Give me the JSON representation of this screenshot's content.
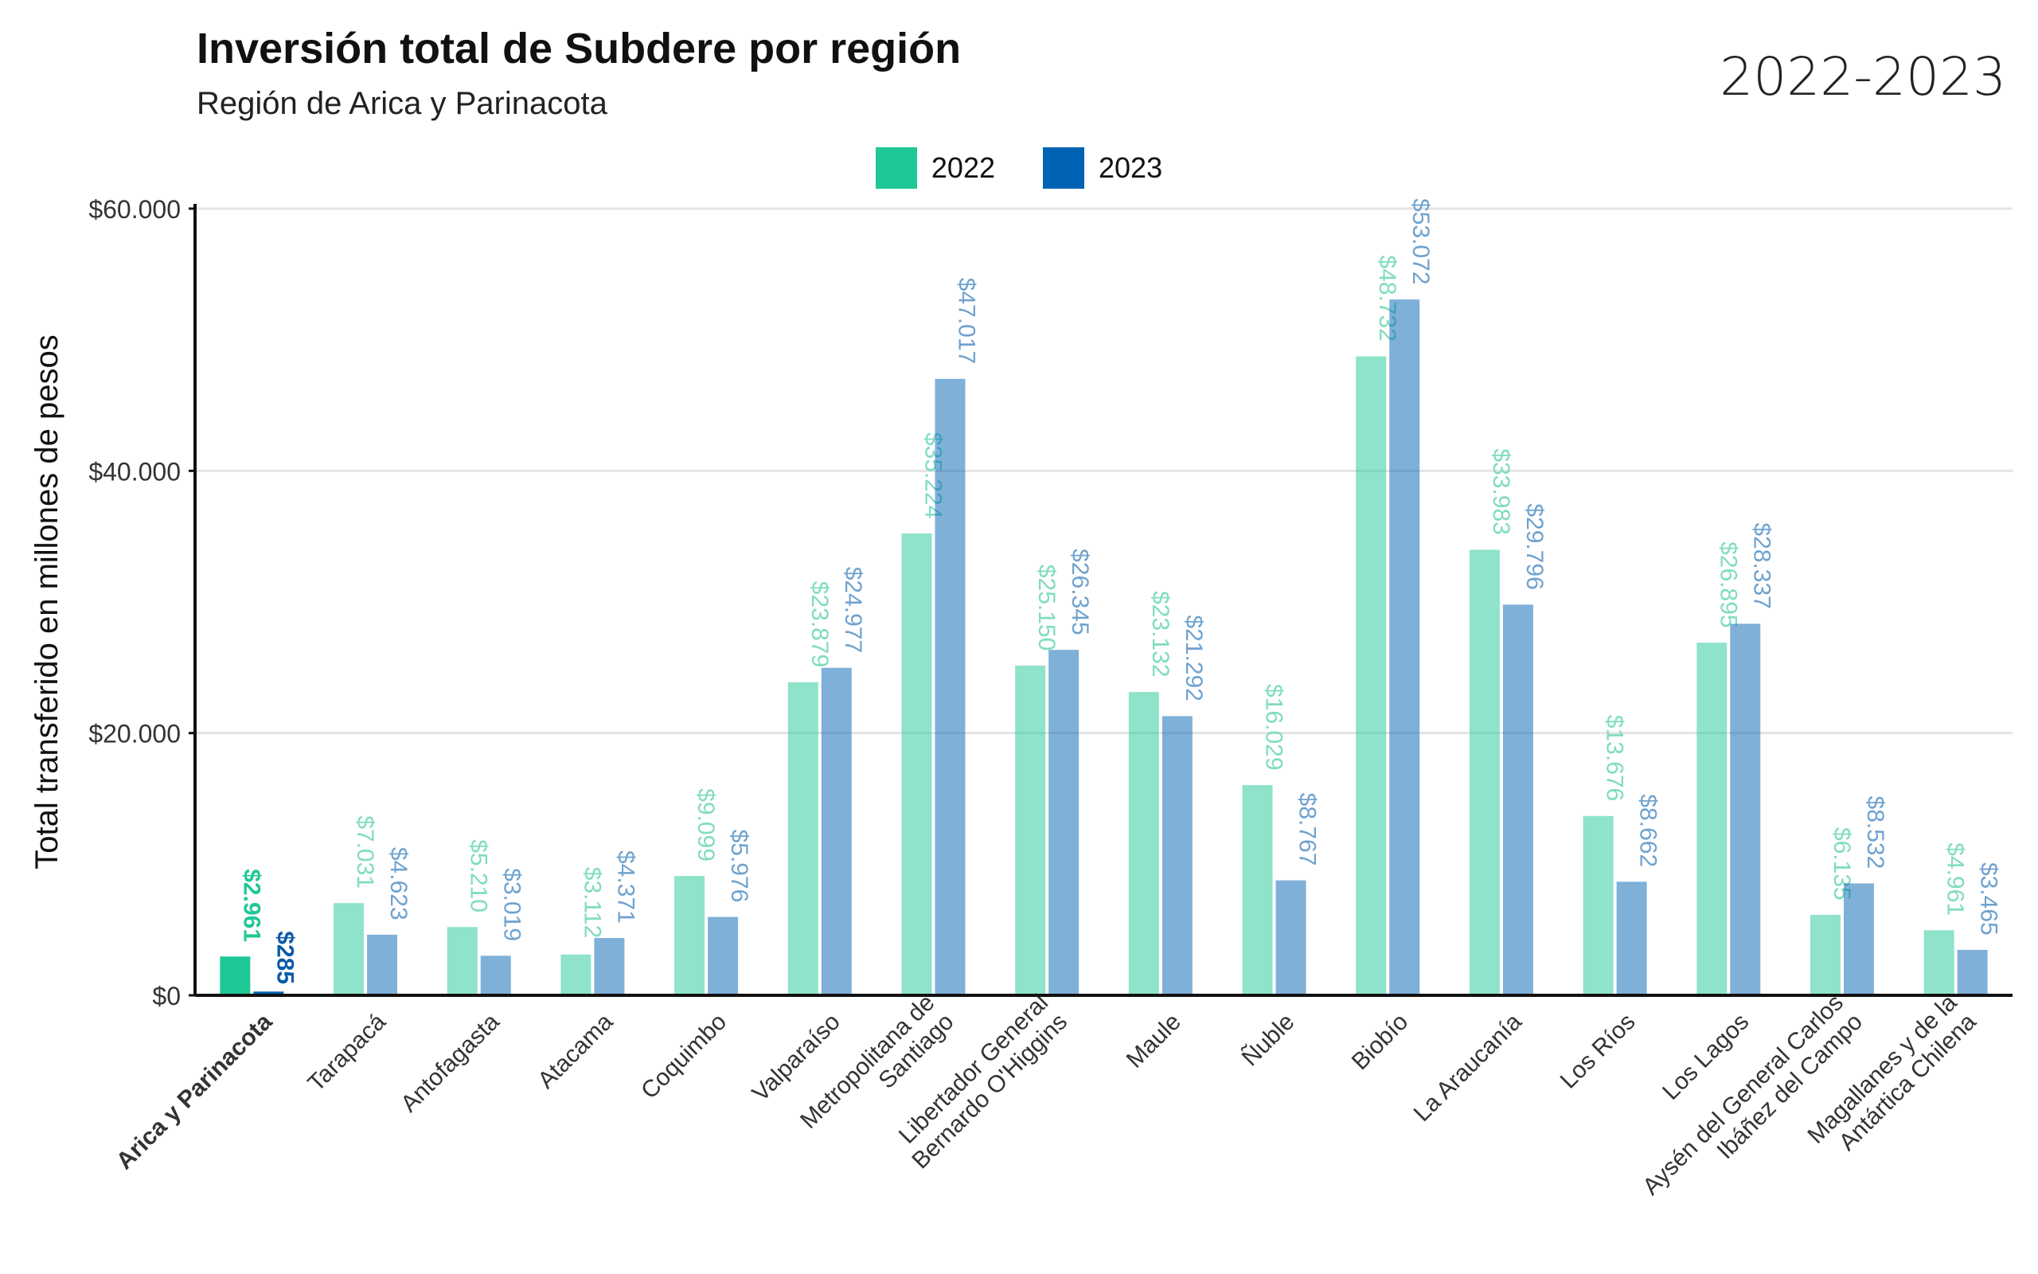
{
  "title": "Inversión total de Subdere por región",
  "subtitle": "Región de Arica y Parinacota",
  "period": "2022-2023",
  "colors": {
    "series_2022": "#1ec896",
    "series_2023": "#0062b2",
    "highlight_label_2022": "#1ec896",
    "highlight_label_2023": "#0a5aa8",
    "label_2022": "#7fdcbf",
    "label_2023": "#6fa2cf",
    "grid": "#e4e4e4",
    "axis": "#111111",
    "tick_text": "#333333"
  },
  "chart_data": {
    "type": "bar",
    "ylabel": "Total transferido en millones de pesos",
    "xlabel": "",
    "ylim": [
      0,
      60000
    ],
    "yticks": [
      0,
      20000,
      40000,
      60000
    ],
    "ytick_labels": [
      "$0",
      "$20.000",
      "$40.000",
      "$60.000"
    ],
    "grid": true,
    "legend_position": "top-center",
    "highlight_category": "Arica y Parinacota",
    "categories": [
      "Arica y Parinacota",
      "Tarapacá",
      "Antofagasta",
      "Atacama",
      "Coquimbo",
      "Valparaíso",
      "Metropolitana de Santiago",
      "Libertador General Bernardo O'Higgins",
      "Maule",
      "Ñuble",
      "Biobío",
      "La Araucanía",
      "Los Ríos",
      "Los Lagos",
      "Aysén del General Carlos Ibáñez del Campo",
      "Magallanes y de la Antártica Chilena"
    ],
    "category_lines": [
      [
        "Arica y Parinacota"
      ],
      [
        "Tarapacá"
      ],
      [
        "Antofagasta"
      ],
      [
        "Atacama"
      ],
      [
        "Coquimbo"
      ],
      [
        "Valparaíso"
      ],
      [
        "Metropolitana de",
        "Santiago"
      ],
      [
        "Libertador General",
        "Bernardo O'Higgins"
      ],
      [
        "Maule"
      ],
      [
        "Ñuble"
      ],
      [
        "Biobío"
      ],
      [
        "La Araucanía"
      ],
      [
        "Los Ríos"
      ],
      [
        "Los Lagos"
      ],
      [
        "Aysén del General Carlos",
        "Ibáñez del Campo"
      ],
      [
        "Magallanes y de la",
        "Antártica Chilena"
      ]
    ],
    "series": [
      {
        "name": "2022",
        "values": [
          2961,
          7031,
          5210,
          3112,
          9099,
          23879,
          35224,
          25150,
          23132,
          16029,
          48732,
          33983,
          13676,
          26895,
          6135,
          4961
        ],
        "labels": [
          "$2.961",
          "$7.031",
          "$5.210",
          "$3.112",
          "$9.099",
          "$23.879",
          "$35.224",
          "$25.150",
          "$23.132",
          "$16.029",
          "$48.732",
          "$33.983",
          "$13.676",
          "$26.895",
          "$6.135",
          "$4.961"
        ]
      },
      {
        "name": "2023",
        "values": [
          285,
          4623,
          3019,
          4371,
          5976,
          24977,
          47017,
          26345,
          21292,
          8767,
          53072,
          29796,
          8662,
          28337,
          8532,
          3465
        ],
        "labels": [
          "$285",
          "$4.623",
          "$3.019",
          "$4.371",
          "$5.976",
          "$24.977",
          "$47.017",
          "$26.345",
          "$21.292",
          "$8.767",
          "$53.072",
          "$29.796",
          "$8.662",
          "$28.337",
          "$8.532",
          "$3.465"
        ]
      }
    ]
  }
}
